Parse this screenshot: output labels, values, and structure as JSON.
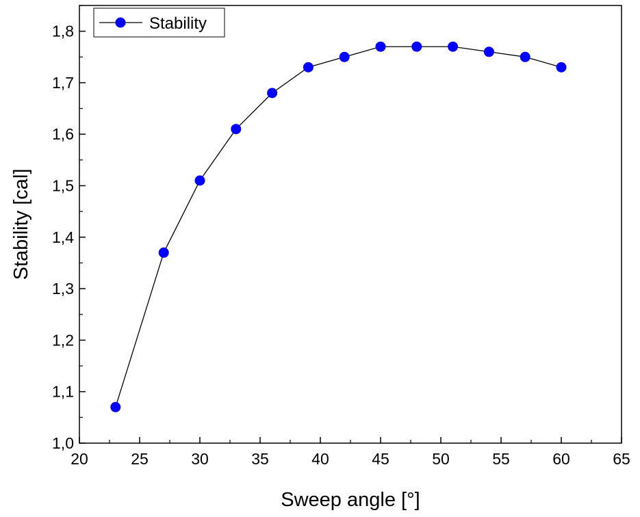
{
  "chart_data": {
    "type": "line",
    "xlabel": "Sweep angle [°]",
    "ylabel": "Stability [cal]",
    "xlim": [
      20,
      65
    ],
    "ylim": [
      1.0,
      1.85
    ],
    "xticks": [
      20,
      25,
      30,
      35,
      40,
      45,
      50,
      55,
      60,
      65
    ],
    "xtick_labels": [
      "20",
      "25",
      "30",
      "35",
      "40",
      "45",
      "50",
      "55",
      "60",
      "65"
    ],
    "yticks": [
      1.0,
      1.1,
      1.2,
      1.3,
      1.4,
      1.5,
      1.6,
      1.7,
      1.8
    ],
    "ytick_labels": [
      "1,0",
      "1,1",
      "1,2",
      "1,3",
      "1,4",
      "1,5",
      "1,6",
      "1,7",
      "1,8"
    ],
    "grid": false,
    "legend_position": "top-left",
    "series": [
      {
        "name": "Stability",
        "color": "#0000ff",
        "line_color": "#000000",
        "marker": "circle",
        "x": [
          23,
          27,
          30,
          33,
          36,
          39,
          42,
          45,
          48,
          51,
          54,
          57,
          60
        ],
        "y": [
          1.07,
          1.37,
          1.51,
          1.61,
          1.68,
          1.73,
          1.75,
          1.77,
          1.77,
          1.77,
          1.76,
          1.75,
          1.73
        ]
      }
    ]
  }
}
